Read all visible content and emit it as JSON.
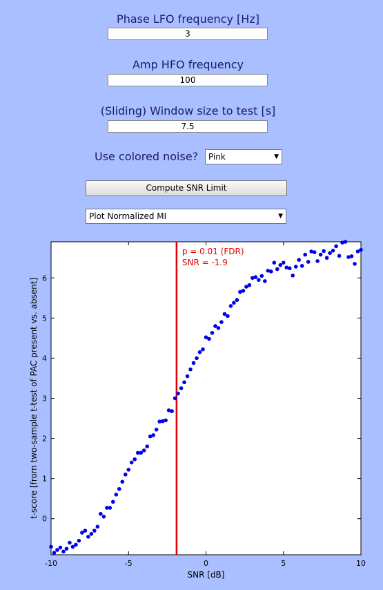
{
  "controls": {
    "phase_label": "Phase LFO frequency [Hz]",
    "phase_value": "3",
    "amp_label": "Amp HFO frequency",
    "amp_value": "100",
    "window_label": "(Sliding) Window size to test [s]",
    "window_value": "7.5",
    "noise_label": "Use colored noise?",
    "noise_value": "Pink",
    "compute_button": "Compute SNR Limit",
    "plot_select": "Plot Normalized MI"
  },
  "icons": {
    "dropdown_arrow": "chevron-down-icon"
  },
  "colors": {
    "background": "#aabfff",
    "points": "#0000e6",
    "threshold_line": "#e00000"
  },
  "chart_data": {
    "type": "scatter",
    "xlabel": "SNR [dB]",
    "ylabel": "t-score [from two-sample t-test of PAC present vs. absent]",
    "xlim": [
      -10,
      10
    ],
    "ylim": [
      -0.9,
      6.9
    ],
    "xticks": [
      -10,
      -5,
      0,
      5,
      10
    ],
    "yticks": [
      0,
      1,
      2,
      3,
      4,
      5,
      6
    ],
    "grid": false,
    "annotation_line": {
      "x": -1.9,
      "label1": "p = 0.01 (FDR)",
      "label2": "SNR = -1.9"
    },
    "x": [
      -10,
      -9.8,
      -9.6,
      -9.4,
      -9.2,
      -9,
      -8.8,
      -8.6,
      -8.4,
      -8.2,
      -8,
      -7.8,
      -7.6,
      -7.4,
      -7.2,
      -7,
      -6.8,
      -6.6,
      -6.4,
      -6.2,
      -6,
      -5.8,
      -5.6,
      -5.4,
      -5.2,
      -5,
      -4.8,
      -4.6,
      -4.4,
      -4.2,
      -4,
      -3.8,
      -3.6,
      -3.4,
      -3.2,
      -3,
      -2.8,
      -2.6,
      -2.4,
      -2.2,
      -2,
      -1.8,
      -1.6,
      -1.4,
      -1.2,
      -1,
      -0.8,
      -0.6,
      -0.4,
      -0.2,
      0,
      0.2,
      0.4,
      0.6,
      0.8,
      1,
      1.2,
      1.4,
      1.6,
      1.8,
      2,
      2.2,
      2.4,
      2.6,
      2.8,
      3,
      3.2,
      3.4,
      3.6,
      3.8,
      4,
      4.2,
      4.4,
      4.6,
      4.8,
      5,
      5.2,
      5.4,
      5.6,
      5.8,
      6,
      6.2,
      6.4,
      6.6,
      6.8,
      7,
      7.2,
      7.4,
      7.6,
      7.8,
      8,
      8.2,
      8.4,
      8.6,
      8.8,
      9,
      9.2,
      9.4,
      9.6,
      9.8,
      10
    ],
    "y": [
      -0.7,
      -0.85,
      -0.78,
      -0.72,
      -0.82,
      -0.75,
      -0.6,
      -0.7,
      -0.65,
      -0.55,
      -0.35,
      -0.3,
      -0.45,
      -0.38,
      -0.3,
      -0.2,
      0.12,
      0.05,
      0.27,
      0.27,
      0.42,
      0.6,
      0.74,
      0.92,
      1.1,
      1.22,
      1.4,
      1.48,
      1.64,
      1.64,
      1.7,
      1.8,
      2.05,
      2.08,
      2.22,
      2.42,
      2.43,
      2.45,
      2.7,
      2.68,
      3.0,
      3.12,
      3.25,
      3.4,
      3.55,
      3.72,
      3.88,
      4.0,
      4.15,
      4.22,
      4.52,
      4.48,
      4.63,
      4.8,
      4.75,
      4.9,
      5.1,
      5.05,
      5.3,
      5.38,
      5.45,
      5.65,
      5.68,
      5.78,
      5.82,
      6.0,
      6.02,
      5.95,
      6.05,
      5.92,
      6.18,
      6.16,
      6.38,
      6.22,
      6.32,
      6.38,
      6.26,
      6.24,
      6.06,
      6.28,
      6.45,
      6.3,
      6.58,
      6.4,
      6.66,
      6.64,
      6.42,
      6.58,
      6.67,
      6.5,
      6.62,
      6.68,
      6.79,
      6.55,
      6.88,
      6.9,
      6.52,
      6.54,
      6.35,
      6.66,
      6.7
    ]
  }
}
